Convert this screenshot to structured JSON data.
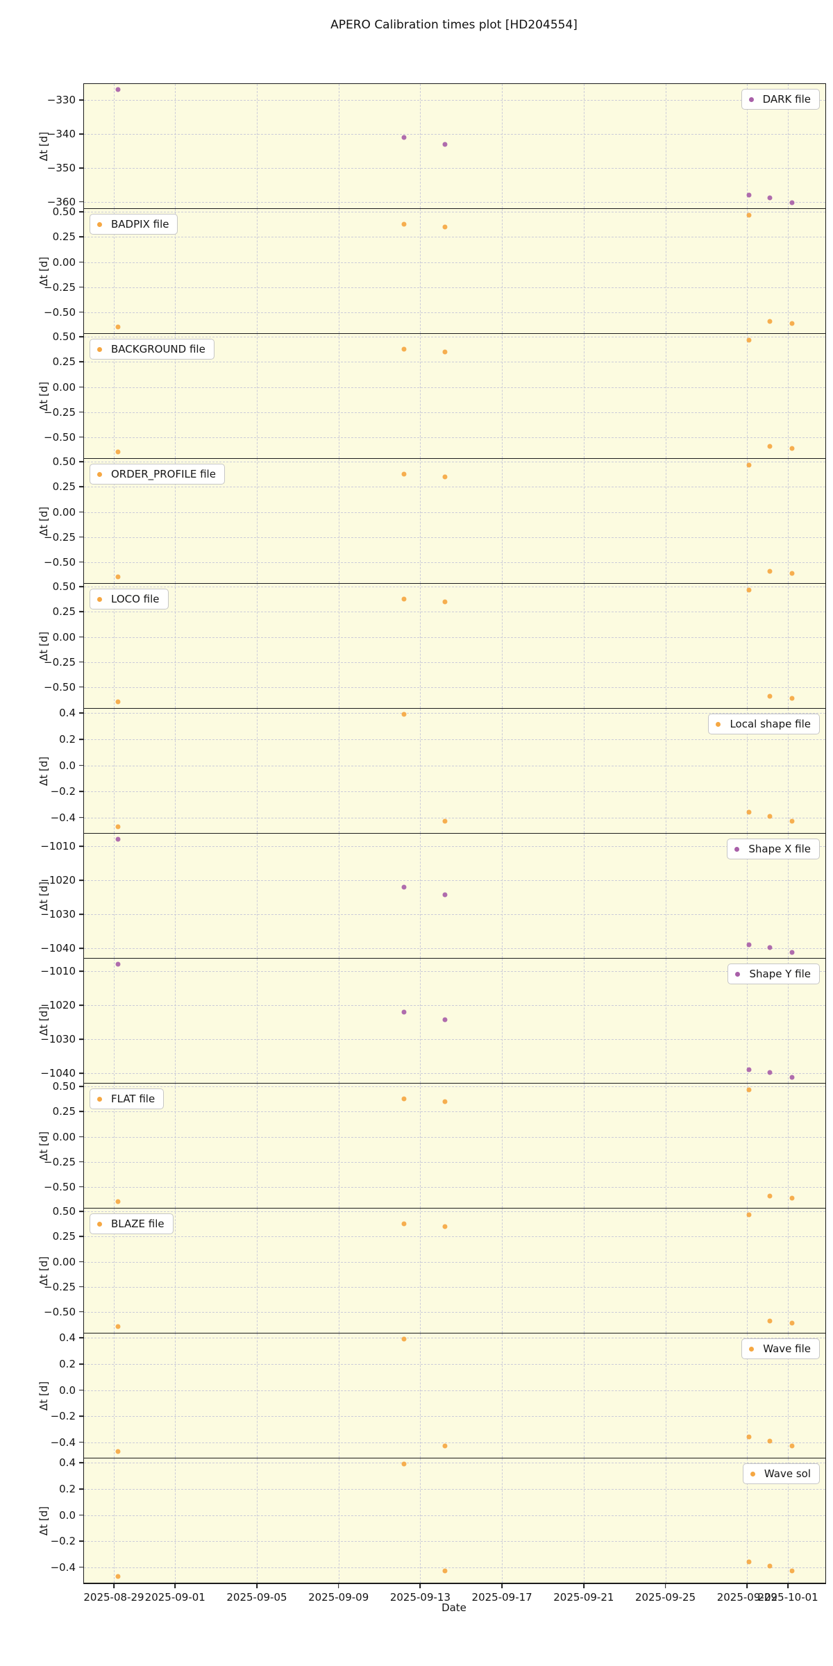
{
  "title": "APERO Calibration times plot [HD204554]",
  "chart_data": {
    "type": "scatter",
    "title": "APERO Calibration times plot [HD204554]",
    "xlabel": "Date",
    "ylabel": "Δt [d]",
    "grid": true,
    "legend_position": "inset top corner per panel",
    "style": {
      "panel_background": "#fcfbe0",
      "grid_color": "#cbcbd8",
      "border_color": "#1c1c1c",
      "purple": "#a85fa8",
      "orange": "#f5a742",
      "legend_bg": "#ffffff",
      "legend_border": "#c6c6c6"
    },
    "x_axis": {
      "tick_labels": [
        "2025-08-29",
        "2025-09-01",
        "2025-09-05",
        "2025-09-09",
        "2025-09-13",
        "2025-09-17",
        "2025-09-21",
        "2025-09-25",
        "2025-09-29",
        "2025-10-01"
      ],
      "tick_day_offsets": [
        0,
        3,
        7,
        11,
        15,
        19,
        23,
        27,
        31,
        33
      ],
      "xlim_day_offsets": [
        -1.46,
        34.83
      ]
    },
    "observation_dates": [
      "2025-08-29",
      "2025-09-12",
      "2025-09-14",
      "2025-09-29",
      "2025-09-30",
      "2025-10-01"
    ],
    "panels": [
      {
        "name": "DARK file",
        "legend_side": "right",
        "color": "#a85fa8",
        "ylim": [
          -361.9,
          -325.2
        ],
        "yticks": [
          {
            "label": "−330",
            "value": -330
          },
          {
            "label": "−340",
            "value": -340
          },
          {
            "label": "−350",
            "value": -350
          },
          {
            "label": "−360",
            "value": -360
          }
        ],
        "points": [
          {
            "date": "2025-08-29",
            "day": 0.2,
            "value": -326.9
          },
          {
            "date": "2025-09-12",
            "day": 14.2,
            "value": -341.0
          },
          {
            "date": "2025-09-14",
            "day": 16.2,
            "value": -343.1
          },
          {
            "date": "2025-09-29",
            "day": 31.1,
            "value": -358.0
          },
          {
            "date": "2025-09-30",
            "day": 32.1,
            "value": -358.8
          },
          {
            "date": "2025-10-01",
            "day": 33.2,
            "value": -360.2
          }
        ]
      },
      {
        "name": "BADPIX file",
        "legend_side": "left",
        "color": "#f5a742",
        "ylim": [
          -0.71,
          0.53
        ],
        "yticks": [
          {
            "label": "0.50",
            "value": 0.5
          },
          {
            "label": "0.25",
            "value": 0.25
          },
          {
            "label": "0.00",
            "value": 0.0
          },
          {
            "label": "−0.25",
            "value": -0.25
          },
          {
            "label": "−0.50",
            "value": -0.5
          }
        ],
        "points": [
          {
            "date": "2025-08-29",
            "day": 0.2,
            "value": -0.65
          },
          {
            "date": "2025-09-12",
            "day": 14.2,
            "value": 0.38
          },
          {
            "date": "2025-09-14",
            "day": 16.2,
            "value": 0.35
          },
          {
            "date": "2025-09-29",
            "day": 31.1,
            "value": 0.47
          },
          {
            "date": "2025-09-30",
            "day": 32.1,
            "value": -0.59
          },
          {
            "date": "2025-10-01",
            "day": 33.2,
            "value": -0.61
          }
        ]
      },
      {
        "name": "BACKGROUND file",
        "legend_side": "left",
        "color": "#f5a742",
        "ylim": [
          -0.71,
          0.53
        ],
        "yticks": [
          {
            "label": "0.50",
            "value": 0.5
          },
          {
            "label": "0.25",
            "value": 0.25
          },
          {
            "label": "0.00",
            "value": 0.0
          },
          {
            "label": "−0.25",
            "value": -0.25
          },
          {
            "label": "−0.50",
            "value": -0.5
          }
        ],
        "points": [
          {
            "date": "2025-08-29",
            "day": 0.2,
            "value": -0.65
          },
          {
            "date": "2025-09-12",
            "day": 14.2,
            "value": 0.38
          },
          {
            "date": "2025-09-14",
            "day": 16.2,
            "value": 0.35
          },
          {
            "date": "2025-09-29",
            "day": 31.1,
            "value": 0.47
          },
          {
            "date": "2025-09-30",
            "day": 32.1,
            "value": -0.59
          },
          {
            "date": "2025-10-01",
            "day": 33.2,
            "value": -0.61
          }
        ]
      },
      {
        "name": "ORDER_PROFILE file",
        "legend_side": "left",
        "color": "#f5a742",
        "ylim": [
          -0.71,
          0.53
        ],
        "yticks": [
          {
            "label": "0.50",
            "value": 0.5
          },
          {
            "label": "0.25",
            "value": 0.25
          },
          {
            "label": "0.00",
            "value": 0.0
          },
          {
            "label": "−0.25",
            "value": -0.25
          },
          {
            "label": "−0.50",
            "value": -0.5
          }
        ],
        "points": [
          {
            "date": "2025-08-29",
            "day": 0.2,
            "value": -0.65
          },
          {
            "date": "2025-09-12",
            "day": 14.2,
            "value": 0.38
          },
          {
            "date": "2025-09-14",
            "day": 16.2,
            "value": 0.35
          },
          {
            "date": "2025-09-29",
            "day": 31.1,
            "value": 0.47
          },
          {
            "date": "2025-09-30",
            "day": 32.1,
            "value": -0.59
          },
          {
            "date": "2025-10-01",
            "day": 33.2,
            "value": -0.61
          }
        ]
      },
      {
        "name": "LOCO file",
        "legend_side": "left",
        "color": "#f5a742",
        "ylim": [
          -0.71,
          0.53
        ],
        "yticks": [
          {
            "label": "0.50",
            "value": 0.5
          },
          {
            "label": "0.25",
            "value": 0.25
          },
          {
            "label": "0.00",
            "value": 0.0
          },
          {
            "label": "−0.25",
            "value": -0.25
          },
          {
            "label": "−0.50",
            "value": -0.5
          }
        ],
        "points": [
          {
            "date": "2025-08-29",
            "day": 0.2,
            "value": -0.65
          },
          {
            "date": "2025-09-12",
            "day": 14.2,
            "value": 0.38
          },
          {
            "date": "2025-09-14",
            "day": 16.2,
            "value": 0.35
          },
          {
            "date": "2025-09-29",
            "day": 31.1,
            "value": 0.47
          },
          {
            "date": "2025-09-30",
            "day": 32.1,
            "value": -0.59
          },
          {
            "date": "2025-10-01",
            "day": 33.2,
            "value": -0.61
          }
        ]
      },
      {
        "name": "Local shape file",
        "legend_side": "right",
        "color": "#f5a742",
        "ylim": [
          -0.518,
          0.433
        ],
        "yticks": [
          {
            "label": "0.4",
            "value": 0.4
          },
          {
            "label": "0.2",
            "value": 0.2
          },
          {
            "label": "0.0",
            "value": 0.0
          },
          {
            "label": "−0.2",
            "value": -0.2
          },
          {
            "label": "−0.4",
            "value": -0.4
          }
        ],
        "points": [
          {
            "date": "2025-08-29",
            "day": 0.2,
            "value": -0.47
          },
          {
            "date": "2025-09-12",
            "day": 14.2,
            "value": 0.39
          },
          {
            "date": "2025-09-14",
            "day": 16.2,
            "value": -0.43
          },
          {
            "date": "2025-09-29",
            "day": 31.1,
            "value": -0.36
          },
          {
            "date": "2025-09-30",
            "day": 32.1,
            "value": -0.39
          },
          {
            "date": "2025-10-01",
            "day": 33.2,
            "value": -0.43
          }
        ]
      },
      {
        "name": "Shape X file",
        "legend_side": "right",
        "color": "#a85fa8",
        "ylim": [
          -1042.9,
          -1006.3
        ],
        "yticks": [
          {
            "label": "−1010",
            "value": -1010
          },
          {
            "label": "−1020",
            "value": -1020
          },
          {
            "label": "−1030",
            "value": -1030
          },
          {
            "label": "−1040",
            "value": -1040
          }
        ],
        "points": [
          {
            "date": "2025-08-29",
            "day": 0.2,
            "value": -1008.0
          },
          {
            "date": "2025-09-12",
            "day": 14.2,
            "value": -1022.1
          },
          {
            "date": "2025-09-14",
            "day": 16.2,
            "value": -1024.2
          },
          {
            "date": "2025-09-29",
            "day": 31.1,
            "value": -1039.1
          },
          {
            "date": "2025-09-30",
            "day": 32.1,
            "value": -1039.9
          },
          {
            "date": "2025-10-01",
            "day": 33.2,
            "value": -1041.3
          }
        ]
      },
      {
        "name": "Shape Y file",
        "legend_side": "right",
        "color": "#a85fa8",
        "ylim": [
          -1042.9,
          -1006.3
        ],
        "yticks": [
          {
            "label": "−1010",
            "value": -1010
          },
          {
            "label": "−1020",
            "value": -1020
          },
          {
            "label": "−1030",
            "value": -1030
          },
          {
            "label": "−1040",
            "value": -1040
          }
        ],
        "points": [
          {
            "date": "2025-08-29",
            "day": 0.2,
            "value": -1008.0
          },
          {
            "date": "2025-09-12",
            "day": 14.2,
            "value": -1022.1
          },
          {
            "date": "2025-09-14",
            "day": 16.2,
            "value": -1024.2
          },
          {
            "date": "2025-09-29",
            "day": 31.1,
            "value": -1039.1
          },
          {
            "date": "2025-09-30",
            "day": 32.1,
            "value": -1039.9
          },
          {
            "date": "2025-10-01",
            "day": 33.2,
            "value": -1041.3
          }
        ]
      },
      {
        "name": "FLAT file",
        "legend_side": "left",
        "color": "#f5a742",
        "ylim": [
          -0.71,
          0.53
        ],
        "yticks": [
          {
            "label": "0.50",
            "value": 0.5
          },
          {
            "label": "0.25",
            "value": 0.25
          },
          {
            "label": "0.00",
            "value": 0.0
          },
          {
            "label": "−0.25",
            "value": -0.25
          },
          {
            "label": "−0.50",
            "value": -0.5
          }
        ],
        "points": [
          {
            "date": "2025-08-29",
            "day": 0.2,
            "value": -0.65
          },
          {
            "date": "2025-09-12",
            "day": 14.2,
            "value": 0.38
          },
          {
            "date": "2025-09-14",
            "day": 16.2,
            "value": 0.35
          },
          {
            "date": "2025-09-29",
            "day": 31.1,
            "value": 0.47
          },
          {
            "date": "2025-09-30",
            "day": 32.1,
            "value": -0.59
          },
          {
            "date": "2025-10-01",
            "day": 33.2,
            "value": -0.61
          }
        ]
      },
      {
        "name": "BLAZE file",
        "legend_side": "left",
        "color": "#f5a742",
        "ylim": [
          -0.71,
          0.53
        ],
        "yticks": [
          {
            "label": "0.50",
            "value": 0.5
          },
          {
            "label": "0.25",
            "value": 0.25
          },
          {
            "label": "0.00",
            "value": 0.0
          },
          {
            "label": "−0.25",
            "value": -0.25
          },
          {
            "label": "−0.50",
            "value": -0.5
          }
        ],
        "points": [
          {
            "date": "2025-08-29",
            "day": 0.2,
            "value": -0.65
          },
          {
            "date": "2025-09-12",
            "day": 14.2,
            "value": 0.38
          },
          {
            "date": "2025-09-14",
            "day": 16.2,
            "value": 0.35
          },
          {
            "date": "2025-09-29",
            "day": 31.1,
            "value": 0.47
          },
          {
            "date": "2025-09-30",
            "day": 32.1,
            "value": -0.59
          },
          {
            "date": "2025-10-01",
            "day": 33.2,
            "value": -0.61
          }
        ]
      },
      {
        "name": "Wave file",
        "legend_side": "right",
        "color": "#f5a742",
        "ylim": [
          -0.518,
          0.433
        ],
        "yticks": [
          {
            "label": "0.4",
            "value": 0.4
          },
          {
            "label": "0.2",
            "value": 0.2
          },
          {
            "label": "0.0",
            "value": 0.0
          },
          {
            "label": "−0.2",
            "value": -0.2
          },
          {
            "label": "−0.4",
            "value": -0.4
          }
        ],
        "points": [
          {
            "date": "2025-08-29",
            "day": 0.2,
            "value": -0.47
          },
          {
            "date": "2025-09-12",
            "day": 14.2,
            "value": 0.39
          },
          {
            "date": "2025-09-14",
            "day": 16.2,
            "value": -0.43
          },
          {
            "date": "2025-09-29",
            "day": 31.1,
            "value": -0.36
          },
          {
            "date": "2025-09-30",
            "day": 32.1,
            "value": -0.39
          },
          {
            "date": "2025-10-01",
            "day": 33.2,
            "value": -0.43
          }
        ]
      },
      {
        "name": "Wave sol",
        "legend_side": "right",
        "color": "#f5a742",
        "ylim": [
          -0.518,
          0.433
        ],
        "yticks": [
          {
            "label": "0.4",
            "value": 0.4
          },
          {
            "label": "0.2",
            "value": 0.2
          },
          {
            "label": "0.0",
            "value": 0.0
          },
          {
            "label": "−0.2",
            "value": -0.2
          },
          {
            "label": "−0.4",
            "value": -0.4
          }
        ],
        "points": [
          {
            "date": "2025-08-29",
            "day": 0.2,
            "value": -0.47
          },
          {
            "date": "2025-09-12",
            "day": 14.2,
            "value": 0.39
          },
          {
            "date": "2025-09-14",
            "day": 16.2,
            "value": -0.43
          },
          {
            "date": "2025-09-29",
            "day": 31.1,
            "value": -0.36
          },
          {
            "date": "2025-09-30",
            "day": 32.1,
            "value": -0.39
          },
          {
            "date": "2025-10-01",
            "day": 33.2,
            "value": -0.43
          }
        ]
      }
    ]
  }
}
